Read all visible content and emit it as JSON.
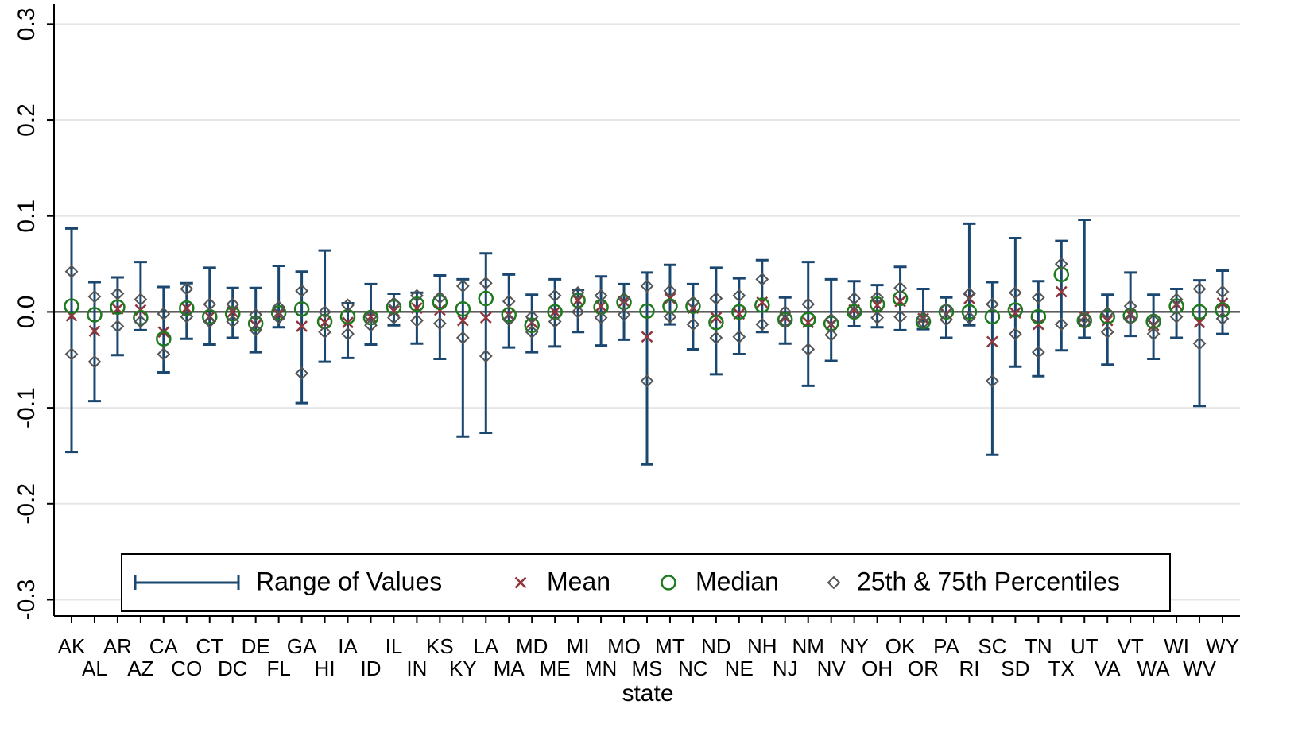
{
  "chart_data": {
    "type": "range",
    "x_label": "state",
    "categories": [
      "AK",
      "AL",
      "AR",
      "AZ",
      "CA",
      "CO",
      "CT",
      "DC",
      "DE",
      "FL",
      "GA",
      "HI",
      "IA",
      "ID",
      "IL",
      "IN",
      "KS",
      "KY",
      "LA",
      "MA",
      "MD",
      "ME",
      "MI",
      "MN",
      "MO",
      "MS",
      "MT",
      "NC",
      "ND",
      "NE",
      "NH",
      "NJ",
      "NM",
      "NV",
      "NY",
      "OH",
      "OK",
      "OR",
      "PA",
      "RI",
      "SC",
      "SD",
      "TN",
      "TX",
      "UT",
      "VA",
      "VT",
      "WA",
      "WI",
      "WV",
      "WY"
    ],
    "series": [
      {
        "name": "Range of Values",
        "color": "#1a476f",
        "high": [
          0.087,
          0.031,
          0.036,
          0.052,
          0.026,
          0.03,
          0.046,
          0.025,
          0.025,
          0.048,
          0.042,
          0.064,
          0.009,
          0.029,
          0.019,
          0.02,
          0.038,
          0.034,
          0.061,
          0.039,
          0.018,
          0.034,
          0.023,
          0.037,
          0.029,
          0.041,
          0.049,
          0.029,
          0.046,
          0.035,
          0.054,
          0.015,
          0.052,
          0.034,
          0.032,
          0.028,
          0.047,
          0.024,
          0.015,
          0.092,
          0.031,
          0.077,
          0.032,
          0.074,
          0.096,
          0.018,
          0.041,
          0.018,
          0.024,
          0.033,
          0.043
        ],
        "low": [
          -0.146,
          -0.093,
          -0.045,
          -0.019,
          -0.063,
          -0.028,
          -0.034,
          -0.027,
          -0.042,
          -0.016,
          -0.095,
          -0.052,
          -0.048,
          -0.034,
          -0.014,
          -0.033,
          -0.049,
          -0.13,
          -0.126,
          -0.037,
          -0.042,
          -0.036,
          -0.021,
          -0.035,
          -0.029,
          -0.159,
          -0.013,
          -0.039,
          -0.065,
          -0.044,
          -0.021,
          -0.033,
          -0.077,
          -0.051,
          -0.015,
          -0.016,
          -0.019,
          -0.018,
          -0.027,
          -0.014,
          -0.149,
          -0.057,
          -0.067,
          -0.04,
          -0.027,
          -0.055,
          -0.025,
          -0.049,
          -0.027,
          -0.098,
          -0.023
        ]
      },
      {
        "name": "Mean",
        "color": "#90353b",
        "values": [
          -0.004,
          -0.02,
          0.003,
          0.002,
          -0.021,
          0.004,
          -0.005,
          0.0,
          -0.014,
          -0.003,
          -0.015,
          -0.011,
          -0.011,
          -0.005,
          0.001,
          0.004,
          0.002,
          -0.009,
          -0.006,
          -0.003,
          -0.011,
          0.0,
          0.012,
          0.006,
          0.011,
          -0.026,
          0.014,
          0.004,
          -0.006,
          -0.002,
          0.01,
          -0.006,
          -0.011,
          -0.013,
          0.002,
          0.007,
          0.011,
          -0.007,
          -0.002,
          0.014,
          -0.031,
          -0.001,
          -0.013,
          0.021,
          -0.005,
          -0.009,
          -0.003,
          -0.014,
          0.008,
          -0.011,
          0.009
        ]
      },
      {
        "name": "Median",
        "color": "#1e7a1e",
        "values": [
          0.006,
          -0.003,
          0.005,
          -0.006,
          -0.028,
          0.004,
          -0.005,
          -0.002,
          -0.012,
          -0.001,
          0.003,
          -0.01,
          -0.005,
          -0.006,
          0.005,
          0.008,
          0.01,
          0.003,
          0.014,
          -0.003,
          -0.014,
          0.0,
          0.012,
          0.005,
          0.01,
          0.001,
          0.006,
          0.006,
          -0.011,
          0.0,
          0.007,
          -0.008,
          -0.008,
          -0.012,
          0.0,
          0.008,
          0.014,
          -0.01,
          0.0,
          0.0,
          -0.005,
          0.002,
          -0.005,
          0.039,
          -0.009,
          -0.005,
          -0.004,
          -0.01,
          0.006,
          0.0,
          0.002
        ]
      },
      {
        "name": "25th & 75th Percentiles",
        "color": "#555555",
        "high": [
          0.042,
          0.016,
          0.019,
          0.013,
          -0.002,
          0.024,
          0.008,
          0.008,
          -0.003,
          0.005,
          0.022,
          0.0,
          0.007,
          -0.005,
          0.009,
          0.017,
          0.015,
          0.027,
          0.03,
          0.011,
          -0.005,
          0.017,
          0.02,
          0.017,
          0.014,
          0.027,
          0.022,
          0.01,
          0.014,
          0.017,
          0.034,
          0.0,
          0.008,
          -0.008,
          0.014,
          0.015,
          0.025,
          -0.006,
          0.003,
          0.019,
          0.008,
          0.02,
          0.015,
          0.05,
          -0.006,
          -0.001,
          0.006,
          -0.009,
          0.013,
          0.024,
          0.021
        ],
        "low": [
          -0.044,
          -0.052,
          -0.015,
          -0.01,
          -0.044,
          -0.005,
          -0.01,
          -0.01,
          -0.019,
          -0.006,
          -0.064,
          -0.021,
          -0.023,
          -0.014,
          -0.006,
          -0.009,
          -0.012,
          -0.027,
          -0.046,
          -0.008,
          -0.021,
          -0.01,
          0.0,
          -0.006,
          -0.003,
          -0.072,
          -0.005,
          -0.013,
          -0.027,
          -0.026,
          -0.013,
          -0.01,
          -0.039,
          -0.024,
          -0.001,
          -0.006,
          -0.005,
          -0.011,
          -0.008,
          -0.006,
          -0.072,
          -0.023,
          -0.042,
          -0.013,
          -0.011,
          -0.021,
          -0.007,
          -0.023,
          -0.005,
          -0.033,
          -0.007
        ]
      }
    ],
    "ylim": [
      -0.317,
      0.321
    ],
    "yticks": [
      -0.3,
      -0.2,
      -0.1,
      {
        "value": 0,
        "label": "0.0"
      },
      0.1,
      0.2,
      0.3
    ],
    "yline": 0,
    "grid": true,
    "legend_position": "bottom"
  }
}
